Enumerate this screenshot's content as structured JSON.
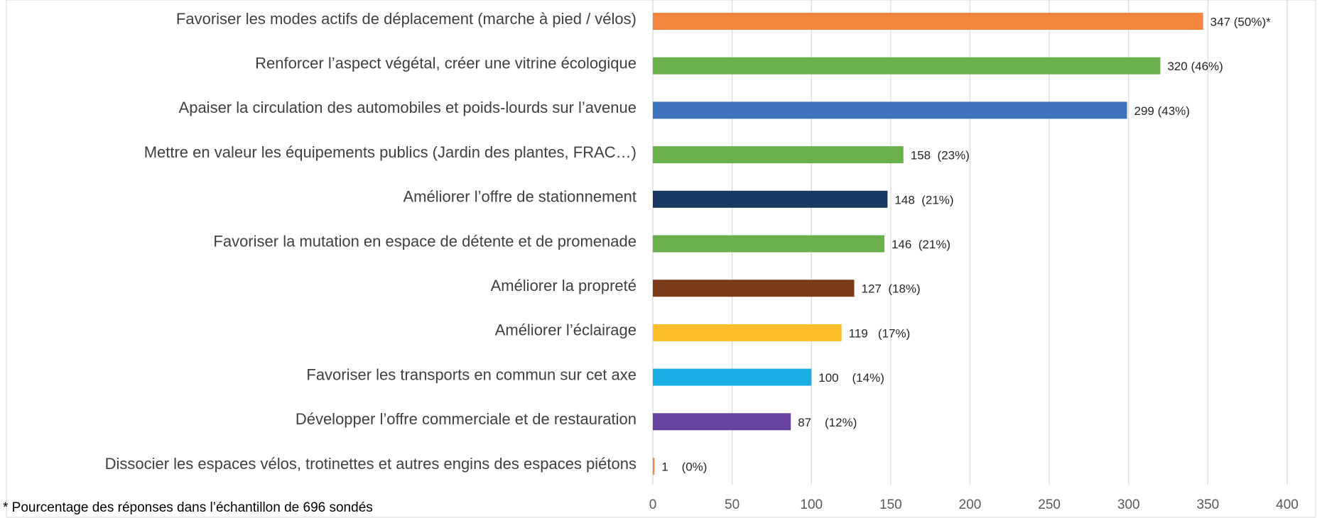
{
  "chart_data": {
    "type": "barh",
    "categories": [
      "Favoriser les modes actifs de déplacement (marche à pied / vélos)",
      "Renforcer l’aspect végétal, créer une vitrine écologique",
      "Apaiser la circulation des automobiles et poids-lourds sur l’avenue",
      "Mettre en valeur les équipements publics (Jardin des plantes, FRAC…)",
      "Améliorer l’offre de stationnement",
      "Favoriser la mutation en espace de détente et de promenade",
      "Améliorer la propreté",
      "Améliorer l’éclairage",
      "Favoriser les transports en commun sur cet axe",
      "Développer l’offre commerciale et de restauration",
      "Dissocier les espaces vélos, trotinettes et autres engins des espaces piétons"
    ],
    "values": [
      347,
      320,
      299,
      158,
      148,
      146,
      127,
      119,
      100,
      87,
      1
    ],
    "value_labels": [
      "347 (50%)*",
      "320 (46%)",
      "299 (43%)",
      "158  (23%)",
      "148  (21%)",
      "146  (21%)",
      "127  (18%)",
      "119   (17%)",
      "100    (14%)",
      "87    (12%)",
      "1    (0%)"
    ],
    "colors": [
      "#f4853e",
      "#6ab04c",
      "#3d72bc",
      "#6ab04c",
      "#183964",
      "#6ab04c",
      "#7d3a18",
      "#fbbd2a",
      "#1aaee5",
      "#6743a0",
      "#f4853e"
    ],
    "xlim": [
      0,
      400
    ],
    "xticks": [
      0,
      50,
      100,
      150,
      200,
      250,
      300,
      350,
      400
    ],
    "grid": true,
    "footnote": "* Pourcentage des réponses dans l’échantillon de 696 sondés"
  }
}
